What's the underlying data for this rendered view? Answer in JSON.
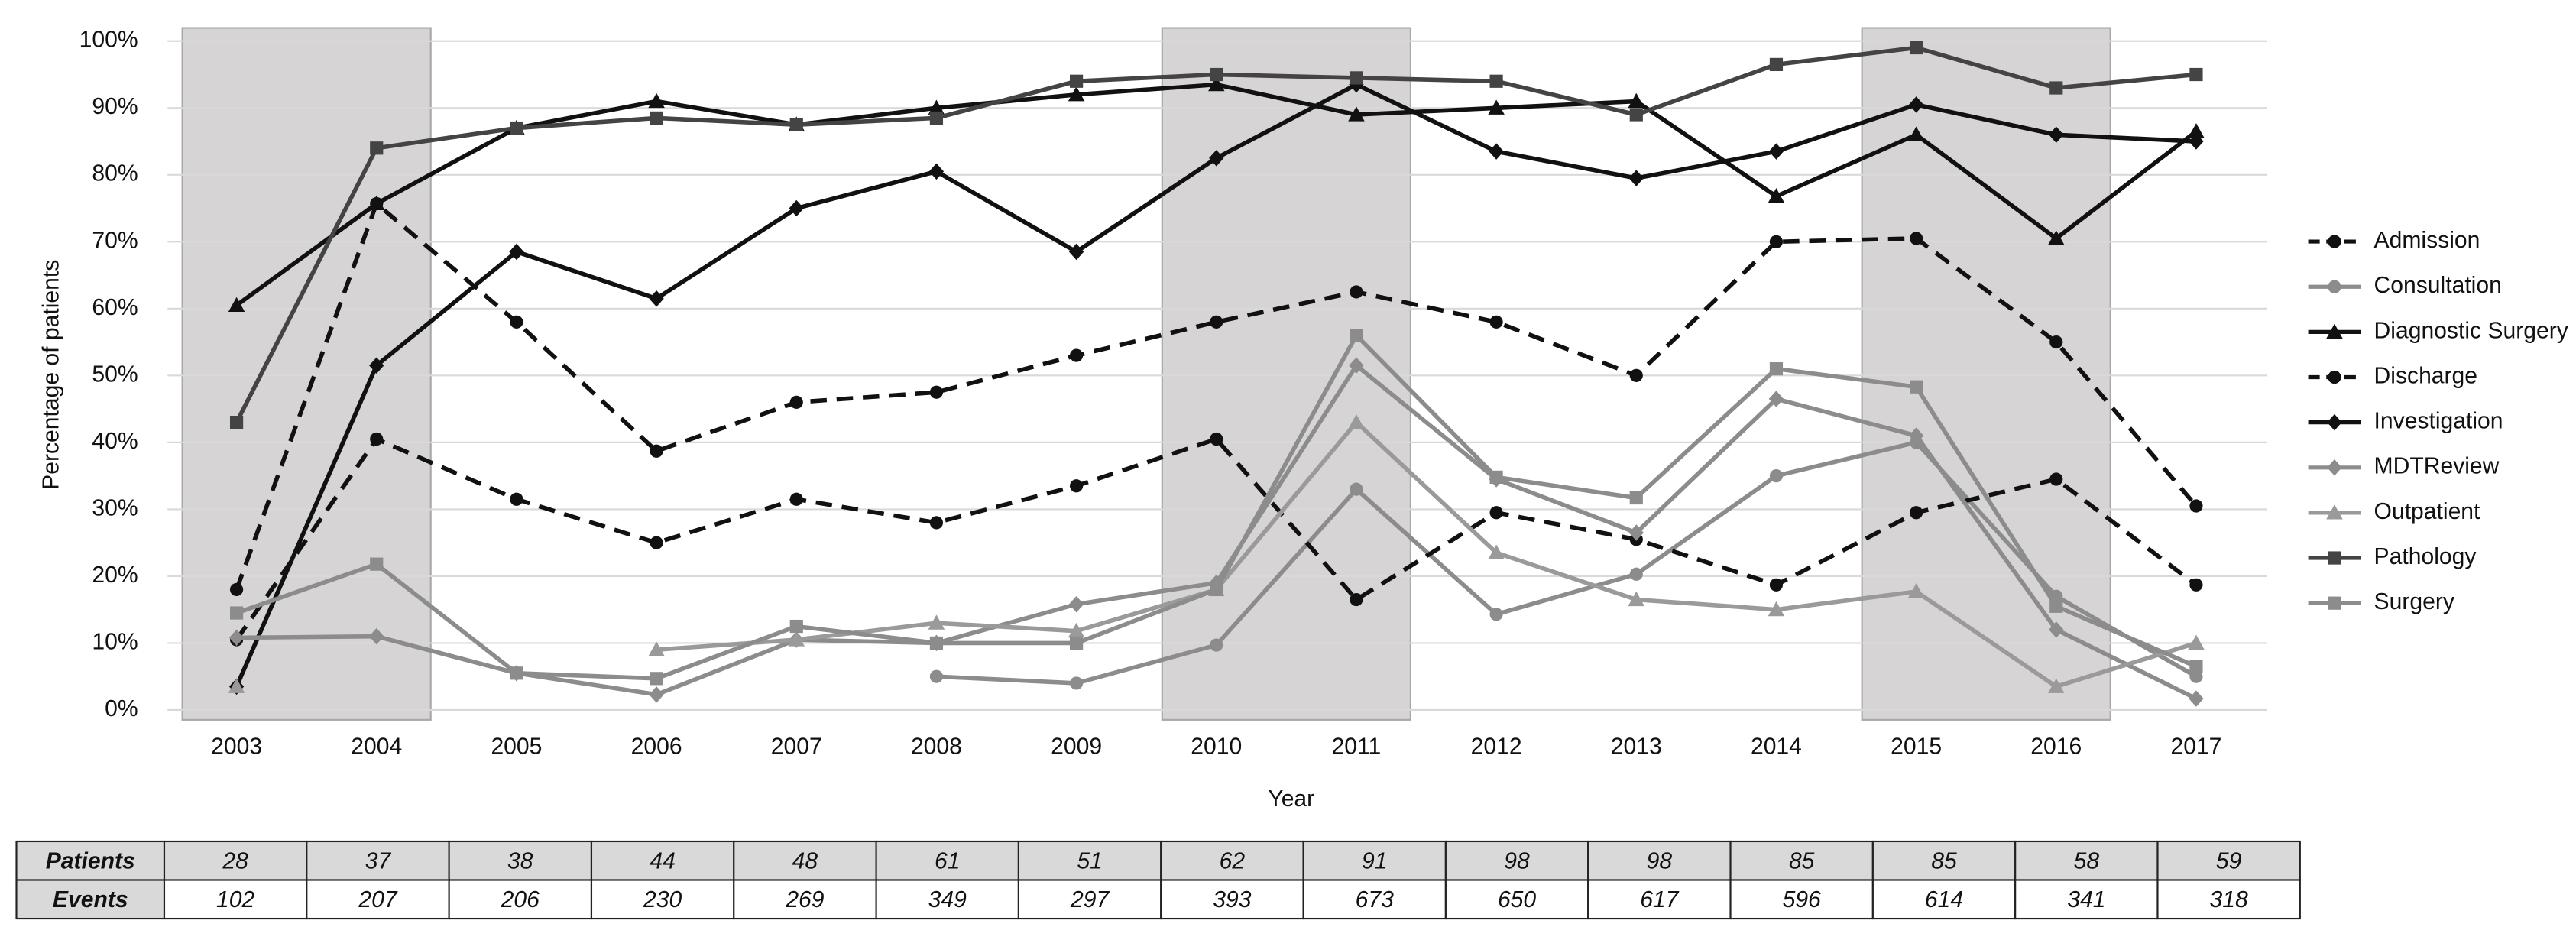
{
  "chart_data": {
    "type": "line",
    "y_label": "Percentage of patients",
    "x_label": "Year",
    "categories": [
      "2003",
      "2004",
      "2005",
      "2006",
      "2007",
      "2008",
      "2009",
      "2010",
      "2011",
      "2012",
      "2013",
      "2014",
      "2015",
      "2016",
      "2017"
    ],
    "ylim": [
      0,
      100
    ],
    "yticks": [
      {
        "value": 0,
        "label": "0%"
      },
      {
        "value": 10,
        "label": "10%"
      },
      {
        "value": 20,
        "label": "20%"
      },
      {
        "value": 30,
        "label": "30%"
      },
      {
        "value": 40,
        "label": "40%"
      },
      {
        "value": 50,
        "label": "50%"
      },
      {
        "value": 60,
        "label": "60%"
      },
      {
        "value": 70,
        "label": "70%"
      },
      {
        "value": 80,
        "label": "80%"
      },
      {
        "value": 90,
        "label": "90%"
      },
      {
        "value": 100,
        "label": "100%"
      }
    ],
    "grid": true,
    "series": [
      {
        "name": "Admission",
        "color": "#111111",
        "marker": "circle",
        "dashed": true,
        "values": [
          18,
          75.7,
          58,
          38.7,
          46,
          47.5,
          53,
          58,
          62.5,
          58,
          50,
          70,
          70.5,
          55,
          30.5
        ]
      },
      {
        "name": "Consultation",
        "color": "#8c8c8c",
        "marker": "circle",
        "dashed": false,
        "values": [
          null,
          null,
          null,
          null,
          null,
          5,
          4,
          9.7,
          33,
          14.3,
          20.3,
          35,
          40,
          17,
          5
        ]
      },
      {
        "name": "Diagnostic Surgery",
        "color": "#111111",
        "marker": "triangle",
        "dashed": false,
        "values": [
          60.5,
          75.7,
          87,
          91,
          87.5,
          90,
          92,
          93.5,
          89,
          90,
          91,
          76.8,
          86,
          70.5,
          86.5
        ]
      },
      {
        "name": "Discharge",
        "color": "#111111",
        "marker": "circle",
        "dashed": true,
        "values": [
          10.5,
          40.5,
          31.5,
          25,
          31.5,
          28,
          33.5,
          40.5,
          16.5,
          29.5,
          25.5,
          18.7,
          29.5,
          34.5,
          18.7
        ]
      },
      {
        "name": "Investigation",
        "color": "#111111",
        "marker": "diamond",
        "dashed": false,
        "values": [
          3.5,
          51.5,
          68.5,
          61.5,
          75,
          80.5,
          68.5,
          82.5,
          93.5,
          83.5,
          79.5,
          83.5,
          90.5,
          86,
          85
        ]
      },
      {
        "name": "MDTReview",
        "color": "#8c8c8c",
        "marker": "diamond",
        "dashed": false,
        "values": [
          10.8,
          11,
          5.5,
          2.3,
          10.5,
          10,
          15.8,
          19,
          51.5,
          34.5,
          26.5,
          46.5,
          41,
          12,
          1.7
        ]
      },
      {
        "name": "Outpatient",
        "color": "#9a9a9a",
        "marker": "triangle",
        "dashed": false,
        "values": [
          3.5,
          null,
          null,
          9,
          10.5,
          13,
          11.8,
          18,
          43,
          23.5,
          16.5,
          15,
          17.7,
          3.5,
          10
        ]
      },
      {
        "name": "Pathology",
        "color": "#444444",
        "marker": "square",
        "dashed": false,
        "values": [
          43,
          84,
          87,
          88.5,
          87.5,
          88.5,
          94,
          95,
          94.5,
          94,
          89,
          96.5,
          99,
          93,
          95
        ]
      },
      {
        "name": "Surgery",
        "color": "#8c8c8c",
        "marker": "square",
        "dashed": false,
        "values": [
          14.5,
          21.8,
          5.5,
          4.7,
          12.5,
          10,
          10,
          18,
          56,
          34.8,
          31.7,
          51,
          48.3,
          15.5,
          6.5
        ]
      }
    ]
  },
  "table": {
    "rows": [
      {
        "label": "Patients",
        "values": [
          "28",
          "37",
          "38",
          "44",
          "48",
          "61",
          "51",
          "62",
          "91",
          "98",
          "98",
          "85",
          "85",
          "58",
          "59"
        ]
      },
      {
        "label": "Events",
        "values": [
          "102",
          "207",
          "206",
          "230",
          "269",
          "349",
          "297",
          "393",
          "673",
          "650",
          "617",
          "596",
          "614",
          "341",
          "318"
        ]
      }
    ]
  }
}
